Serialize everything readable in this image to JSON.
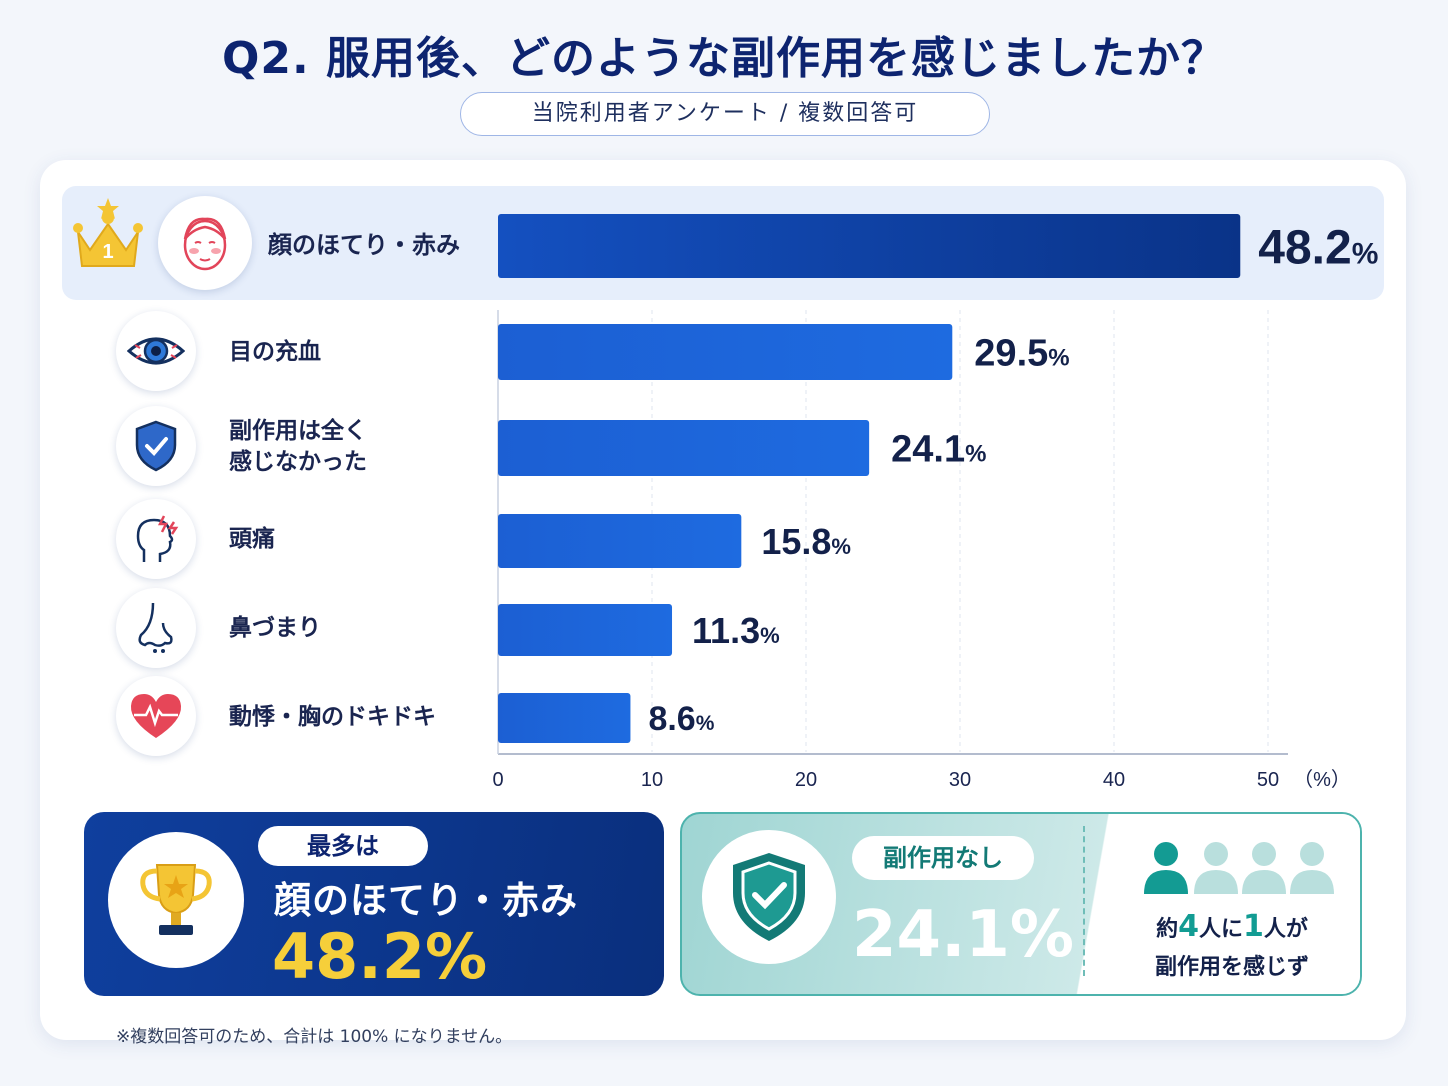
{
  "header": {
    "title": "Q2. 服用後、どのような副作用を感じましたか？",
    "subtitle": "当院利用者アンケート / 複数回答可"
  },
  "chart_data": {
    "type": "bar",
    "orientation": "horizontal",
    "categories": [
      "顔のほてり・赤み",
      "目の充血",
      "副作用は全く\n感じなかった",
      "頭痛",
      "鼻づまり",
      "動悸・胸のドキドキ"
    ],
    "values": [
      48.2,
      29.5,
      24.1,
      15.8,
      11.3,
      8.6
    ],
    "value_labels": [
      "48.2%",
      "29.5%",
      "24.1%",
      "15.8%",
      "11.3%",
      "8.6%"
    ],
    "icons": [
      "face-flush-icon",
      "red-eye-icon",
      "shield-check-icon",
      "headache-icon",
      "nose-icon",
      "heart-pulse-icon"
    ],
    "rank_badge": "1",
    "xlim": [
      0,
      50
    ],
    "xticks": [
      "0",
      "10",
      "20",
      "30",
      "40",
      "50"
    ],
    "xunit": "（%）",
    "grid": true,
    "colors": {
      "top_bar": "#0a3a95",
      "bar": "#1b63d8",
      "highlight": "#e6eefb"
    }
  },
  "summary": {
    "top_pill": "最多は",
    "top_name": "顔のほてり・赤み",
    "top_value": "48.2%",
    "none_pill": "副作用なし",
    "none_value": "24.1%",
    "ratio_prefix": "約",
    "ratio_num1": "4",
    "ratio_mid": "人に",
    "ratio_num2": "1",
    "ratio_suffix": "人が",
    "ratio_line2": "副作用を感じず"
  },
  "footnote": "※複数回答可のため、合計は 100% になりません。"
}
